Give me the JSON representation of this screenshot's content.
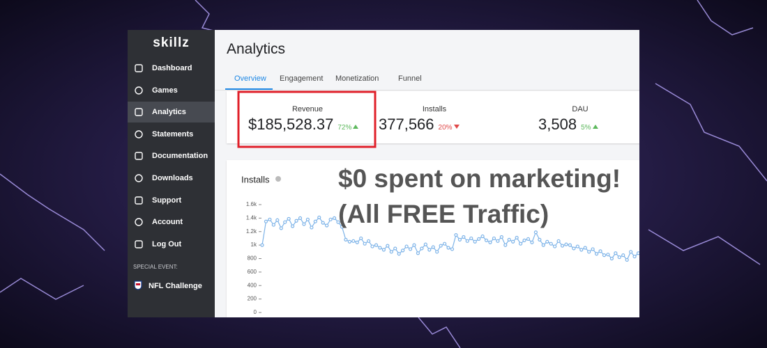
{
  "sidebar": {
    "logo": "skillz",
    "nav": [
      "Dashboard",
      "Games",
      "Analytics",
      "Statements",
      "Documentation",
      "Downloads",
      "Support",
      "Account",
      "Log Out"
    ],
    "active": 2,
    "special_event_heading": "SPECIAL EVENT:",
    "special_event": "NFL Challenge"
  },
  "header": {
    "title": "Analytics",
    "tabs": [
      "Overview",
      "Engagement",
      "Monetization",
      "Funnel"
    ],
    "active_tab": 0
  },
  "stats": [
    {
      "label": "Revenue",
      "value": "$185,528.37",
      "change": "72%",
      "direction": "up"
    },
    {
      "label": "Installs",
      "value": "377,566",
      "change": "20%",
      "direction": "down"
    },
    {
      "label": "DAU",
      "value": "3,508",
      "change": "5%",
      "direction": "up"
    }
  ],
  "chart_data": {
    "type": "line",
    "title": "Installs",
    "color": "#7db3e8",
    "values": [
      1000,
      1350,
      1380,
      1300,
      1370,
      1250,
      1340,
      1390,
      1280,
      1360,
      1400,
      1310,
      1380,
      1260,
      1350,
      1410,
      1330,
      1290,
      1380,
      1400,
      1340,
      1270,
      1080,
      1050,
      1060,
      1040,
      1100,
      1020,
      1060,
      980,
      1000,
      960,
      930,
      990,
      900,
      950,
      870,
      920,
      980,
      940,
      1000,
      880,
      950,
      1010,
      930,
      970,
      900,
      990,
      1020,
      960,
      940,
      1150,
      1080,
      1120,
      1060,
      1100,
      1050,
      1090,
      1130,
      1070,
      1040,
      1100,
      1060,
      1120,
      1000,
      1080,
      1050,
      1110,
      1020,
      1070,
      1090,
      1040,
      1190,
      1080,
      1000,
      1050,
      1020,
      980,
      1060,
      990,
      1010,
      1000,
      950,
      980,
      930,
      960,
      900,
      940,
      870,
      910,
      850,
      860,
      800,
      880,
      820,
      850,
      780,
      900,
      830,
      880
    ],
    "ylim": [
      0,
      1600
    ],
    "yticks": [
      0,
      200,
      400,
      600,
      800,
      {
        "value": 1000,
        "label": "1k"
      },
      {
        "value": 1200,
        "label": "1.2k"
      },
      {
        "value": 1400,
        "label": "1.4k"
      },
      {
        "value": 1600,
        "label": "1.6k"
      }
    ]
  },
  "overlay": {
    "lines": [
      "$0 spent on marketing!",
      "(All FREE Traffic)"
    ]
  }
}
